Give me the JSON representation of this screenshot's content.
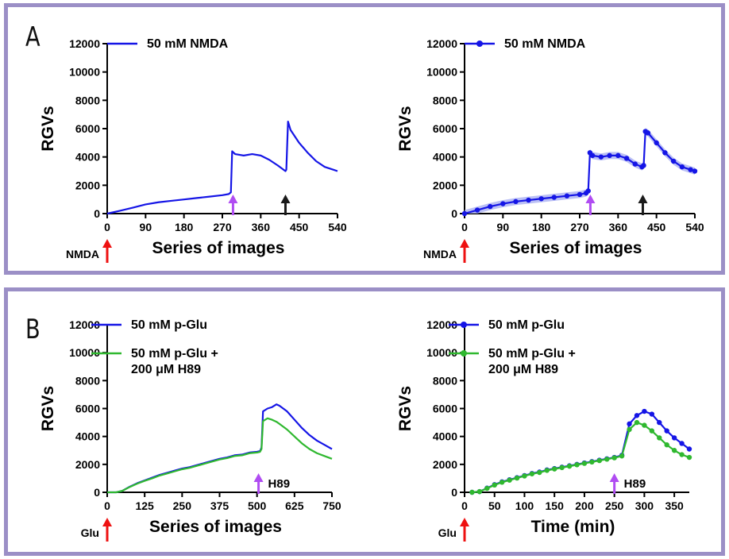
{
  "panels": [
    {
      "letter": "A"
    },
    {
      "letter": "B"
    }
  ],
  "colors": {
    "blue": "#1515e6",
    "green": "#2fb82f",
    "band": "#aab0f3",
    "red": "#ee1111",
    "purple": "#b04cf2",
    "black": "#1a1a1a"
  },
  "chart_data": [
    {
      "id": "a1",
      "type": "line",
      "ylabel": "RGVs",
      "xlabel": "Series of images",
      "xlim": [
        0,
        540
      ],
      "ylim": [
        0,
        12000
      ],
      "xticks": [
        0,
        90,
        180,
        270,
        360,
        450,
        540
      ],
      "yticks": [
        0,
        2000,
        4000,
        6000,
        8000,
        10000,
        12000
      ],
      "series": [
        {
          "name": "50 mM NMDA",
          "color": "#1515e6",
          "marker": "none",
          "x": [
            0,
            30,
            60,
            90,
            120,
            150,
            180,
            210,
            240,
            270,
            285,
            290,
            293,
            300,
            320,
            340,
            360,
            380,
            400,
            418,
            420,
            424,
            430,
            450,
            470,
            490,
            510,
            530,
            540
          ],
          "y": [
            0,
            200,
            420,
            650,
            800,
            900,
            1000,
            1100,
            1200,
            1300,
            1380,
            1500,
            4400,
            4200,
            4100,
            4200,
            4100,
            3800,
            3400,
            3000,
            3100,
            6500,
            5900,
            5000,
            4300,
            3700,
            3300,
            3100,
            3000
          ]
        }
      ],
      "arrows": [
        {
          "x": 0,
          "color": "#ee1111",
          "label": "NMDA",
          "below": true
        },
        {
          "x": 295,
          "color": "#b04cf2",
          "label": ""
        },
        {
          "x": 418,
          "color": "#1a1a1a",
          "label": ""
        }
      ]
    },
    {
      "id": "a2",
      "type": "line",
      "ylabel": "RGVs",
      "xlabel": "Series of images",
      "xlim": [
        0,
        540
      ],
      "ylim": [
        0,
        12000
      ],
      "xticks": [
        0,
        90,
        180,
        270,
        360,
        450,
        540
      ],
      "yticks": [
        0,
        2000,
        4000,
        6000,
        8000,
        10000,
        12000
      ],
      "series": [
        {
          "name": "50 mM NMDA",
          "color": "#1515e6",
          "marker": "dot",
          "band": 250,
          "x": [
            0,
            30,
            60,
            90,
            120,
            150,
            180,
            210,
            240,
            270,
            285,
            290,
            294,
            300,
            320,
            340,
            360,
            380,
            400,
            416,
            420,
            424,
            430,
            450,
            470,
            490,
            510,
            530,
            540
          ],
          "y": [
            0,
            250,
            500,
            700,
            850,
            950,
            1050,
            1150,
            1250,
            1350,
            1450,
            1600,
            4300,
            4100,
            4000,
            4100,
            4100,
            3900,
            3500,
            3300,
            3400,
            5800,
            5700,
            5000,
            4300,
            3700,
            3300,
            3100,
            3000
          ]
        }
      ],
      "arrows": [
        {
          "x": 0,
          "color": "#ee1111",
          "label": "NMDA",
          "below": true
        },
        {
          "x": 295,
          "color": "#b04cf2",
          "label": ""
        },
        {
          "x": 418,
          "color": "#1a1a1a",
          "label": ""
        }
      ]
    },
    {
      "id": "b1",
      "type": "line",
      "ylabel": "RGVs",
      "xlabel": "Series of images",
      "xlim": [
        0,
        750
      ],
      "ylim": [
        0,
        12000
      ],
      "xticks": [
        0,
        125,
        250,
        375,
        500,
        625,
        750
      ],
      "yticks": [
        0,
        2000,
        4000,
        6000,
        8000,
        10000,
        12000
      ],
      "series": [
        {
          "name": "50 mM p-Glu",
          "color": "#1515e6",
          "marker": "none",
          "x": [
            0,
            30,
            50,
            75,
            100,
            125,
            150,
            175,
            200,
            225,
            250,
            275,
            300,
            325,
            350,
            375,
            400,
            425,
            450,
            475,
            500,
            510,
            515,
            520,
            535,
            550,
            565,
            575,
            600,
            625,
            650,
            675,
            700,
            725,
            750
          ],
          "y": [
            0,
            0,
            100,
            400,
            650,
            850,
            1050,
            1250,
            1400,
            1550,
            1700,
            1800,
            1950,
            2100,
            2250,
            2400,
            2500,
            2650,
            2700,
            2850,
            2900,
            2950,
            3200,
            5800,
            6000,
            6100,
            6300,
            6200,
            5800,
            5200,
            4600,
            4100,
            3700,
            3400,
            3100
          ]
        },
        {
          "name": "50 mM p-Glu + 200 μM H89",
          "color": "#2fb82f",
          "marker": "none",
          "x": [
            0,
            30,
            50,
            75,
            100,
            125,
            150,
            175,
            200,
            225,
            250,
            275,
            300,
            325,
            350,
            375,
            400,
            425,
            450,
            475,
            500,
            510,
            515,
            520,
            535,
            550,
            565,
            575,
            600,
            625,
            650,
            675,
            700,
            725,
            750
          ],
          "y": [
            0,
            0,
            100,
            380,
            620,
            820,
            1000,
            1200,
            1350,
            1500,
            1650,
            1750,
            1900,
            2050,
            2200,
            2350,
            2450,
            2600,
            2650,
            2800,
            2850,
            2900,
            3100,
            5100,
            5300,
            5200,
            5050,
            4900,
            4500,
            4000,
            3500,
            3100,
            2800,
            2600,
            2400
          ]
        }
      ],
      "arrows": [
        {
          "x": 0,
          "color": "#ee1111",
          "label": "Glu",
          "below": true
        },
        {
          "x": 505,
          "color": "#b04cf2",
          "label": "H89"
        }
      ]
    },
    {
      "id": "b2",
      "type": "line",
      "ylabel": "RGVs",
      "xlabel": "Time (min)",
      "xlim": [
        0,
        375
      ],
      "ylim": [
        0,
        12000
      ],
      "xticks": [
        0,
        50,
        100,
        150,
        200,
        250,
        300,
        350
      ],
      "yticks": [
        0,
        2000,
        4000,
        6000,
        8000,
        10000,
        12000
      ],
      "series": [
        {
          "name": "50 mM p-Glu",
          "color": "#1515e6",
          "marker": "dot",
          "x": [
            12.5,
            25,
            37.5,
            50,
            62.5,
            75,
            87.5,
            100,
            112.5,
            125,
            137.5,
            150,
            162.5,
            175,
            187.5,
            200,
            212.5,
            225,
            237.5,
            250,
            262.5,
            275,
            287.5,
            300,
            312.5,
            325,
            337.5,
            350,
            362.5,
            375
          ],
          "y": [
            0,
            50,
            300,
            550,
            750,
            900,
            1050,
            1200,
            1350,
            1450,
            1600,
            1700,
            1800,
            1900,
            2000,
            2100,
            2200,
            2300,
            2400,
            2500,
            2650,
            4900,
            5500,
            5800,
            5600,
            5000,
            4400,
            3900,
            3500,
            3100
          ]
        },
        {
          "name": "50 mM p-Glu + 200 μM H89",
          "color": "#2fb82f",
          "marker": "dot",
          "x": [
            12.5,
            25,
            37.5,
            50,
            62.5,
            75,
            87.5,
            100,
            112.5,
            125,
            137.5,
            150,
            162.5,
            175,
            187.5,
            200,
            212.5,
            225,
            237.5,
            250,
            262.5,
            275,
            287.5,
            300,
            312.5,
            325,
            337.5,
            350,
            362.5,
            375
          ],
          "y": [
            0,
            50,
            280,
            520,
            720,
            870,
            1020,
            1170,
            1320,
            1420,
            1570,
            1670,
            1770,
            1870,
            1970,
            2070,
            2170,
            2270,
            2370,
            2470,
            2600,
            4500,
            5000,
            4800,
            4400,
            3900,
            3400,
            3000,
            2700,
            2500
          ]
        }
      ],
      "arrows": [
        {
          "x": 0,
          "color": "#ee1111",
          "label": "Glu",
          "below": true
        },
        {
          "x": 250,
          "color": "#b04cf2",
          "label": "H89"
        }
      ]
    }
  ]
}
